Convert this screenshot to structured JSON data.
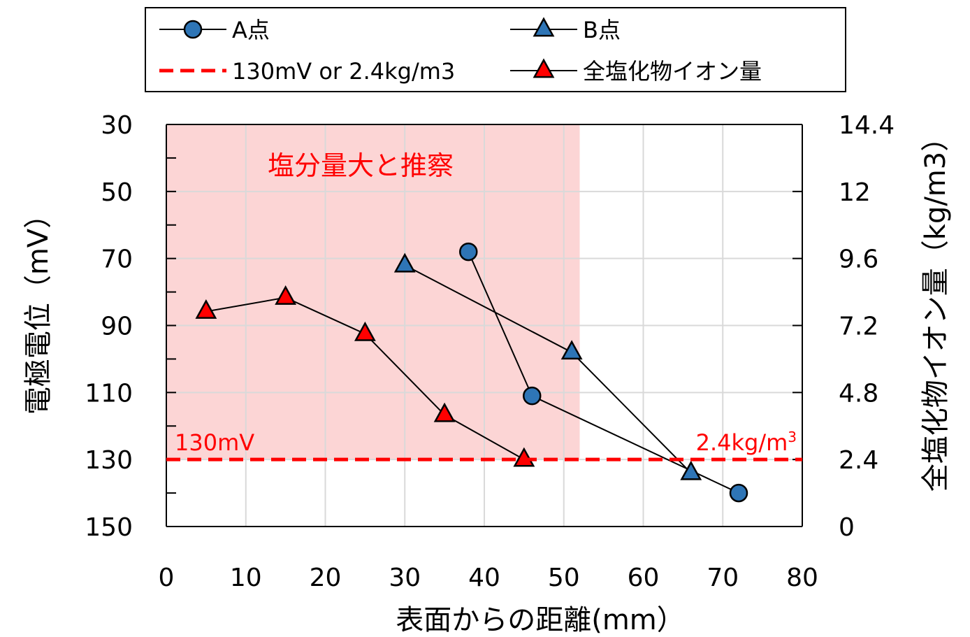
{
  "chart_data": {
    "type": "line",
    "xlabel": "表面からの距離(mm）",
    "ylabel": "電極電位（mV）",
    "y2label": "全塩化物イオン量（kg/m3）",
    "x_ticks": [
      "0",
      "10",
      "20",
      "30",
      "40",
      "50",
      "60",
      "70",
      "80"
    ],
    "y_ticks": [
      "30",
      "50",
      "70",
      "90",
      "110",
      "130",
      "150"
    ],
    "y2_ticks": [
      "14.4",
      "12",
      "9.6",
      "7.2",
      "4.8",
      "2.4",
      "0"
    ],
    "xlim": [
      0,
      80
    ],
    "ylim": [
      30,
      150
    ],
    "y_inverted": true,
    "y2lim": [
      0,
      14.4
    ],
    "grid": true,
    "legend_position": "top",
    "region": {
      "label": "塩分量大と推察",
      "x": [
        0,
        52
      ],
      "y": [
        30,
        130
      ],
      "color": "#fcd5d5"
    },
    "threshold": {
      "legend": "130mV or 2.4kg/m3",
      "y": 130,
      "color": "#ff0000",
      "left_label": "130mV",
      "right_label": "2.4kg/m",
      "right_label_sup": "3"
    },
    "series": [
      {
        "name": "A点",
        "axis": "left",
        "marker": "circle",
        "color": "#2e75b6",
        "x": [
          38,
          46,
          72
        ],
        "y": [
          68,
          111,
          140
        ]
      },
      {
        "name": "B点",
        "axis": "left",
        "marker": "triangle",
        "color": "#2e75b6",
        "x": [
          30,
          51,
          66
        ],
        "y": [
          72,
          98,
          134
        ]
      },
      {
        "name": "全塩化物イオン量",
        "axis": "right",
        "marker": "triangle",
        "color": "#ff0000",
        "x": [
          5,
          15,
          25,
          35,
          45
        ],
        "y": [
          7.7,
          8.2,
          6.9,
          4.0,
          2.4
        ]
      }
    ]
  }
}
